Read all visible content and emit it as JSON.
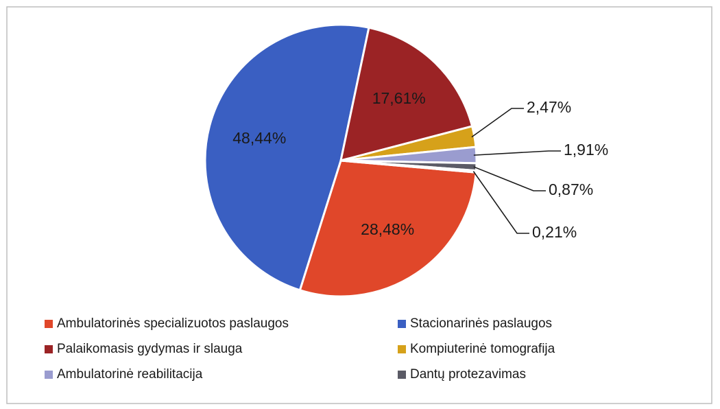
{
  "chart_data": {
    "type": "pie",
    "categories": [
      "Ambulatorinės specializuotos paslaugos",
      "Stacionarinės paslaugos",
      "Palaikomasis gydymas ir slauga",
      "Kompiuterinė tomografija",
      "Ambulatorinė reabilitacija",
      "Dantų protezavimas",
      null
    ],
    "values": [
      28.48,
      48.44,
      17.61,
      2.47,
      1.91,
      0.87,
      0.21
    ],
    "value_labels": [
      "28,48%",
      "48,44%",
      "17,61%",
      "2,47%",
      "1,91%",
      "0,87%",
      "0,21%"
    ],
    "colors": [
      "#e0472a",
      "#3a5fc2",
      "#9b2325",
      "#d6a11a",
      "#9a9ccf",
      "#5b5b66",
      "#6b7fa8"
    ],
    "legend": "bottom"
  }
}
